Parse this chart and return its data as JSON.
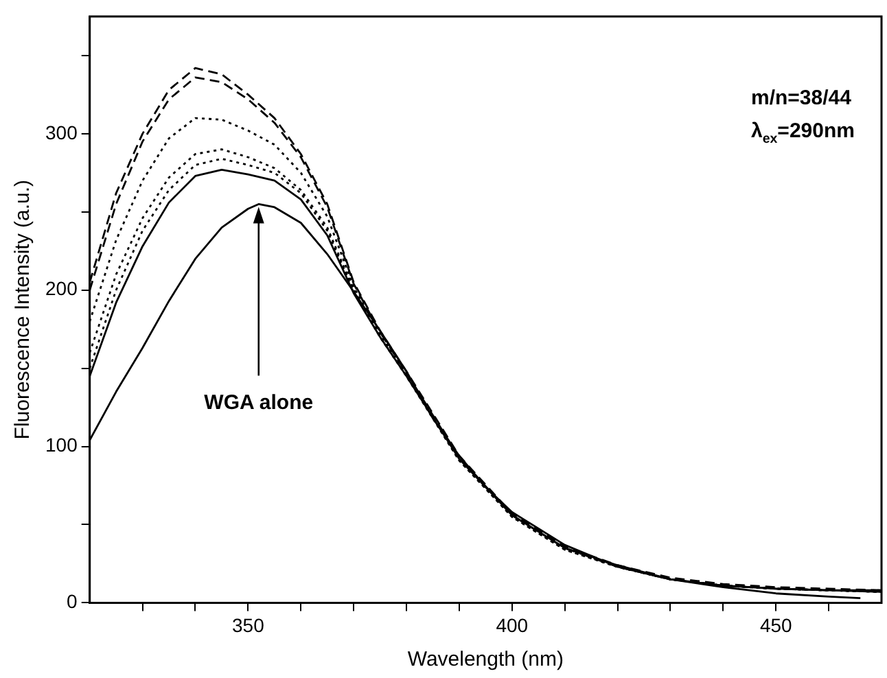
{
  "chart_data": {
    "type": "line",
    "xlabel": "Wavelength (nm)",
    "ylabel": "Fluorescence Intensity (a.u.)",
    "xlim": [
      320,
      470
    ],
    "ylim": [
      0,
      375
    ],
    "xticks": [
      {
        "value": 330,
        "label": null
      },
      {
        "value": 340,
        "label": null
      },
      350,
      {
        "value": 360,
        "label": null
      },
      {
        "value": 370,
        "label": null
      },
      {
        "value": 380,
        "label": null
      },
      {
        "value": 390,
        "label": null
      },
      400,
      {
        "value": 410,
        "label": null
      },
      {
        "value": 420,
        "label": null
      },
      {
        "value": 430,
        "label": null
      },
      {
        "value": 440,
        "label": null
      },
      450,
      {
        "value": 460,
        "label": null
      }
    ],
    "yticks": [
      0,
      {
        "value": 50,
        "label": null
      },
      100,
      {
        "value": 150,
        "label": null
      },
      200,
      {
        "value": 250,
        "label": null
      },
      300,
      {
        "value": 350,
        "label": null
      }
    ],
    "grid": false,
    "legend": false,
    "marker": "none",
    "x": [
      320,
      325,
      330,
      335,
      340,
      345,
      350,
      355,
      360,
      365,
      370,
      375,
      380,
      390,
      400,
      410,
      420,
      430,
      440,
      450,
      460,
      470
    ],
    "series": [
      {
        "color": "#000000",
        "line_style": "dashed",
        "values": [
          205,
          262,
          300,
          328,
          342,
          338,
          325,
          310,
          287,
          255,
          205,
          174,
          148,
          94,
          57,
          36,
          24,
          16,
          12,
          10,
          9,
          8
        ]
      },
      {
        "color": "#000000",
        "line_style": "dashed",
        "values": [
          200,
          255,
          295,
          322,
          336,
          333,
          322,
          307,
          285,
          253,
          204,
          173,
          147,
          93,
          56,
          35,
          23,
          15,
          11,
          9,
          8,
          8
        ]
      },
      {
        "color": "#000000",
        "line_style": "dotted",
        "values": [
          180,
          232,
          270,
          297,
          310,
          309,
          302,
          293,
          275,
          247,
          202,
          172,
          146,
          92,
          55,
          34,
          23,
          15,
          11,
          9,
          8,
          7
        ]
      },
      {
        "color": "#000000",
        "line_style": "dotted",
        "values": [
          160,
          210,
          246,
          272,
          287,
          290,
          285,
          278,
          264,
          240,
          200,
          170,
          145,
          91,
          55,
          34,
          23,
          15,
          11,
          9,
          8,
          7
        ]
      },
      {
        "color": "#000000",
        "line_style": "dotted",
        "values": [
          150,
          200,
          238,
          264,
          280,
          284,
          280,
          275,
          262,
          238,
          199,
          170,
          145,
          91,
          55,
          34,
          23,
          15,
          11,
          9,
          8,
          7
        ]
      },
      {
        "color": "#000000",
        "line_style": "solid",
        "values": [
          145,
          192,
          228,
          256,
          273,
          277,
          274,
          270,
          258,
          235,
          198,
          170,
          145,
          92,
          56,
          35,
          24,
          15,
          11,
          9,
          8,
          7
        ]
      },
      {
        "color": "#000000",
        "line_style": "solid",
        "x": [
          320,
          325,
          330,
          335,
          340,
          345,
          350,
          352,
          355,
          360,
          365,
          370,
          375,
          380,
          385,
          390,
          395,
          400,
          410,
          420,
          430,
          440,
          450,
          460,
          466
        ],
        "values": [
          104,
          135,
          163,
          193,
          220,
          240,
          252,
          255,
          253,
          243,
          223,
          199,
          174,
          148,
          118,
          94,
          74,
          58,
          37,
          23,
          15,
          10,
          6,
          4,
          3
        ]
      }
    ],
    "annotations": [
      {
        "text": "WGA alone",
        "x": 352,
        "y": 255
      },
      "m/n=38/44",
      "λ$_{ex}$=290nm"
    ]
  }
}
